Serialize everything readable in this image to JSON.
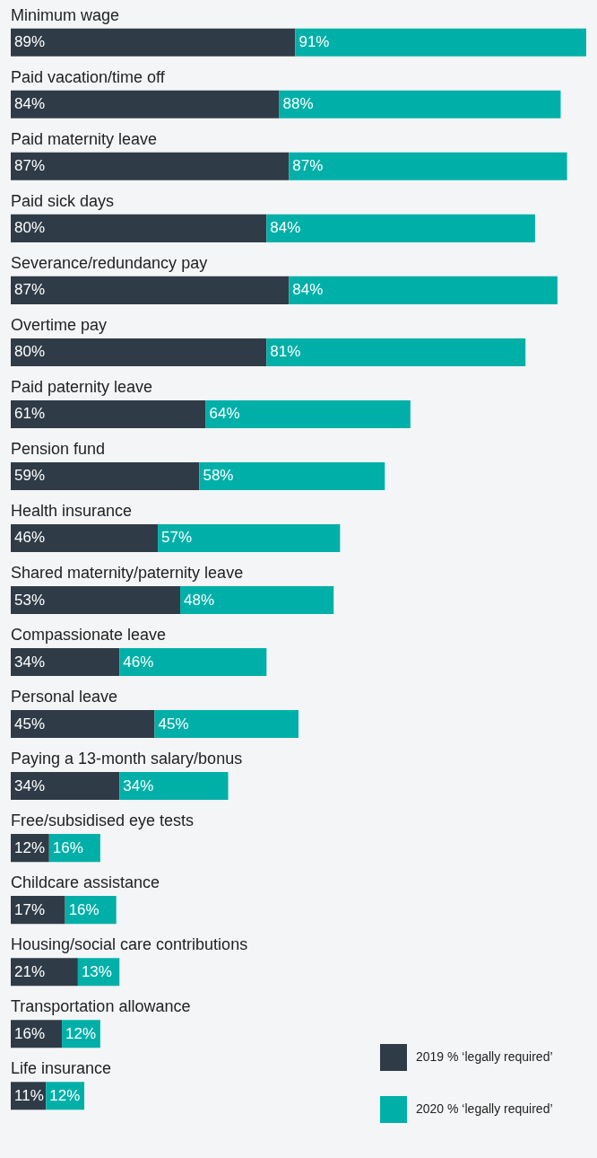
{
  "chart_data": {
    "type": "bar",
    "orientation": "horizontal",
    "stacked": true,
    "legend": "bottom right",
    "categories": [
      "Minimum wage",
      "Paid vacation/time off",
      "Paid maternity leave",
      "Paid sick days",
      "Severance/redundancy pay",
      "Overtime pay",
      "Paid paternity leave",
      "Pension fund",
      "Health insurance",
      "Shared maternity/paternity leave",
      "Compassionate leave",
      "Personal leave",
      "Paying a 13-month salary/bonus",
      "Free/subsidised eye tests",
      "Childcare assistance",
      "Housing/social care contributions",
      "Transportation allowance",
      "Life insurance"
    ],
    "series": [
      {
        "name": "2019 % ‘legally required’",
        "color": "#2f3c48",
        "values": [
          89,
          84,
          87,
          80,
          87,
          80,
          61,
          59,
          46,
          53,
          34,
          45,
          34,
          12,
          17,
          21,
          16,
          11
        ],
        "value_labels": [
          "89%",
          "84%",
          "87%",
          "80%",
          "87%",
          "80%",
          "61%",
          "59%",
          "46%",
          "53%",
          "34%",
          "45%",
          "34%",
          "12%",
          "17%",
          "21%",
          "16%",
          "11%"
        ]
      },
      {
        "name": "2020 % ‘legally required’",
        "color": "#00b0a8",
        "values": [
          91,
          88,
          87,
          84,
          84,
          81,
          64,
          58,
          57,
          48,
          46,
          45,
          34,
          16,
          16,
          13,
          12,
          12
        ],
        "value_labels": [
          "91%",
          "88%",
          "87%",
          "84%",
          "84%",
          "81%",
          "64%",
          "58%",
          "57%",
          "48%",
          "46%",
          "45%",
          "34%",
          "16%",
          "16%",
          "13%",
          "12%",
          "12%"
        ]
      }
    ]
  }
}
